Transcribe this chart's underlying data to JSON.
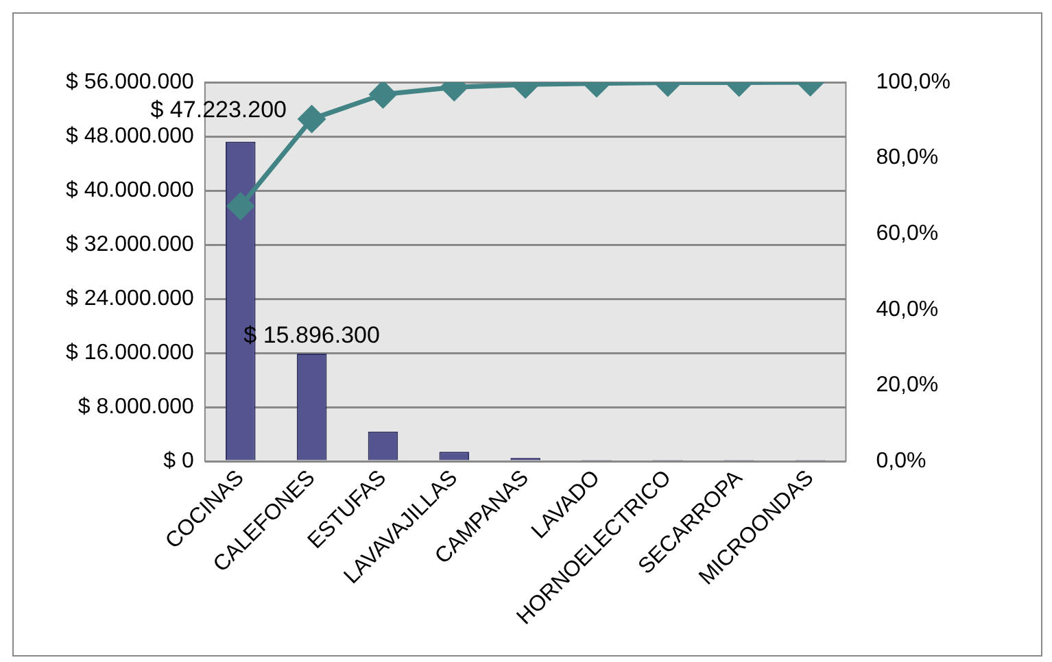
{
  "chart_data": {
    "type": "bar",
    "categories": [
      "COCINAS",
      "CALEFONES",
      "ESTUFAS",
      "LAVAVAJILLAS",
      "CAMPANAS",
      "LAVADO",
      "HORNOELECTRICO",
      "SECARROPA",
      "MICROONDAS"
    ],
    "series": [
      {
        "color": "#545490",
        "values": [
          47223200,
          15896300,
          4400000,
          1400000,
          500000,
          100000,
          100000,
          100000,
          100000
        ],
        "value_labels": [
          "$ 47.223.200",
          "$ 15.896.300",
          null,
          null,
          null,
          null,
          null,
          null,
          null
        ]
      },
      {
        "type": "line",
        "axis": "y2",
        "color": "#428385",
        "marker": "diamond",
        "values": [
          67.3,
          90.3,
          96.8,
          98.7,
          99.4,
          99.7,
          99.9,
          99.9,
          100
        ]
      }
    ],
    "ylim": [
      0,
      56000000
    ],
    "yticks": [
      {
        "value": 0,
        "label": "$ 0"
      },
      {
        "value": 8000000,
        "label": "$ 8.000.000"
      },
      {
        "value": 16000000,
        "label": "$ 16.000.000"
      },
      {
        "value": 24000000,
        "label": "$ 24.000.000"
      },
      {
        "value": 32000000,
        "label": "$ 32.000.000"
      },
      {
        "value": 40000000,
        "label": "$ 40.000.000"
      },
      {
        "value": 48000000,
        "label": "$ 48.000.000"
      },
      {
        "value": 56000000,
        "label": "$ 56.000.000"
      }
    ],
    "y2lim": [
      0,
      100
    ],
    "y2ticks": [
      {
        "value": 0,
        "label": "0,0%"
      },
      {
        "value": 20,
        "label": "20,0%"
      },
      {
        "value": 40,
        "label": "40,0%"
      },
      {
        "value": 60,
        "label": "60,0%"
      },
      {
        "value": 80,
        "label": "80,0%"
      },
      {
        "value": 100,
        "label": "100,0%"
      }
    ],
    "grid": "y",
    "legend": false
  }
}
